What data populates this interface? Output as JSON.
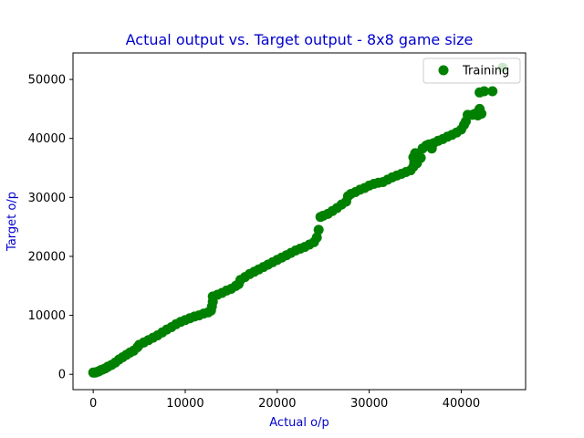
{
  "chart_data": {
    "type": "scatter",
    "title": "Actual output vs. Target output - 8x8 game size",
    "xlabel": "Actual o/p",
    "ylabel": "Target o/p",
    "title_color": "#0000cc",
    "label_color": "#0000cc",
    "marker_color": "#008000",
    "xlim": [
      -2200,
      47000
    ],
    "ylim": [
      -2600,
      54500
    ],
    "xticks": [
      0,
      10000,
      20000,
      30000,
      40000
    ],
    "xtick_labels": [
      "0",
      "10000",
      "20000",
      "30000",
      "40000"
    ],
    "yticks": [
      0,
      10000,
      20000,
      30000,
      40000,
      50000
    ],
    "ytick_labels": [
      "0",
      "10000",
      "20000",
      "30000",
      "40000",
      "50000"
    ],
    "grid": false,
    "legend": {
      "position": "top-right"
    },
    "series": [
      {
        "name": "Training",
        "marker": "circle",
        "color": "#008000",
        "points": [
          [
            0,
            300
          ],
          [
            200,
            300
          ],
          [
            400,
            400
          ],
          [
            600,
            500
          ],
          [
            800,
            700
          ],
          [
            1000,
            800
          ],
          [
            1300,
            1000
          ],
          [
            1600,
            1300
          ],
          [
            2000,
            1600
          ],
          [
            2400,
            2000
          ],
          [
            2800,
            2500
          ],
          [
            3200,
            2900
          ],
          [
            3600,
            3300
          ],
          [
            4000,
            3700
          ],
          [
            4400,
            4000
          ],
          [
            4800,
            4600
          ],
          [
            5000,
            5000
          ],
          [
            5500,
            5400
          ],
          [
            6000,
            5800
          ],
          [
            6500,
            6200
          ],
          [
            7000,
            6600
          ],
          [
            7500,
            7100
          ],
          [
            8000,
            7600
          ],
          [
            8500,
            8000
          ],
          [
            9000,
            8500
          ],
          [
            9500,
            8900
          ],
          [
            10000,
            9200
          ],
          [
            10500,
            9500
          ],
          [
            11000,
            9800
          ],
          [
            11500,
            10000
          ],
          [
            12000,
            10300
          ],
          [
            12500,
            10500
          ],
          [
            12800,
            10800
          ],
          [
            12900,
            11500
          ],
          [
            13000,
            12300
          ],
          [
            13000,
            13200
          ],
          [
            13500,
            13500
          ],
          [
            14000,
            13800
          ],
          [
            14500,
            14200
          ],
          [
            15000,
            14500
          ],
          [
            15500,
            15000
          ],
          [
            15800,
            15300
          ],
          [
            16000,
            16000
          ],
          [
            16500,
            16500
          ],
          [
            17000,
            17000
          ],
          [
            17500,
            17400
          ],
          [
            18000,
            17800
          ],
          [
            18500,
            18200
          ],
          [
            19000,
            18600
          ],
          [
            19500,
            19000
          ],
          [
            20000,
            19400
          ],
          [
            20500,
            19800
          ],
          [
            21000,
            20200
          ],
          [
            21500,
            20600
          ],
          [
            22000,
            21000
          ],
          [
            22500,
            21300
          ],
          [
            23000,
            21600
          ],
          [
            23500,
            22000
          ],
          [
            24000,
            22400
          ],
          [
            24300,
            23200
          ],
          [
            24500,
            24500
          ],
          [
            24700,
            26700
          ],
          [
            25000,
            26900
          ],
          [
            25500,
            27200
          ],
          [
            26000,
            27700
          ],
          [
            26500,
            28200
          ],
          [
            27000,
            28800
          ],
          [
            27500,
            29300
          ],
          [
            27700,
            30200
          ],
          [
            28000,
            30600
          ],
          [
            28500,
            30900
          ],
          [
            29000,
            31300
          ],
          [
            29500,
            31600
          ],
          [
            30000,
            32000
          ],
          [
            30500,
            32300
          ],
          [
            31000,
            32500
          ],
          [
            31500,
            32600
          ],
          [
            32000,
            33000
          ],
          [
            32500,
            33400
          ],
          [
            33000,
            33700
          ],
          [
            33500,
            34000
          ],
          [
            34000,
            34300
          ],
          [
            34500,
            34600
          ],
          [
            34800,
            35200
          ],
          [
            34900,
            36000
          ],
          [
            34800,
            36800
          ],
          [
            35000,
            37500
          ],
          [
            35200,
            35800
          ],
          [
            35600,
            36700
          ],
          [
            35800,
            38300
          ],
          [
            36200,
            38800
          ],
          [
            36500,
            39000
          ],
          [
            36800,
            38300
          ],
          [
            37000,
            39200
          ],
          [
            37500,
            39600
          ],
          [
            38000,
            39900
          ],
          [
            38500,
            40300
          ],
          [
            39000,
            40600
          ],
          [
            39500,
            41000
          ],
          [
            40000,
            41500
          ],
          [
            40300,
            42300
          ],
          [
            40500,
            42900
          ],
          [
            40700,
            44000
          ],
          [
            41200,
            44000
          ],
          [
            41500,
            44200
          ],
          [
            41800,
            43900
          ],
          [
            42000,
            45000
          ],
          [
            42200,
            44200
          ],
          [
            42000,
            47800
          ],
          [
            42500,
            48000
          ],
          [
            43400,
            48000
          ],
          [
            44500,
            52000
          ]
        ]
      }
    ]
  }
}
